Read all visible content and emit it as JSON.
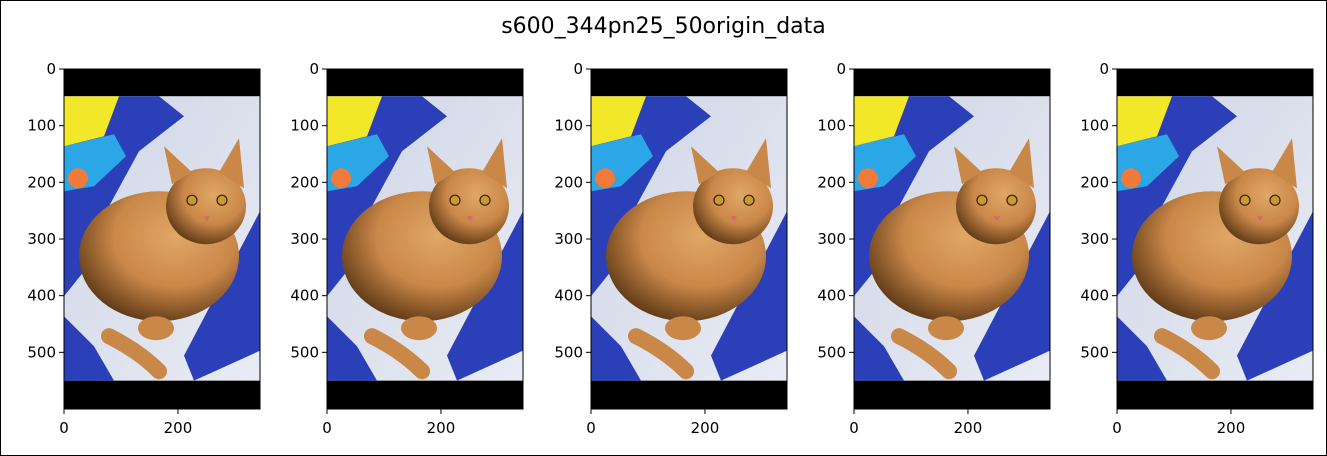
{
  "figure": {
    "title": "s600_344pn25_50origin_data"
  },
  "chart_data": [
    {
      "type": "image",
      "panel": 1,
      "image": "orange-cat-on-blue-bag-icon",
      "image_extent": {
        "width": 344,
        "height": 600
      },
      "x_ticks": [
        0,
        200
      ],
      "y_ticks": [
        0,
        100,
        200,
        300,
        400,
        500
      ]
    },
    {
      "type": "image",
      "panel": 2,
      "image": "orange-cat-on-blue-bag-icon",
      "image_extent": {
        "width": 344,
        "height": 600
      },
      "x_ticks": [
        0,
        200
      ],
      "y_ticks": [
        0,
        100,
        200,
        300,
        400,
        500
      ]
    },
    {
      "type": "image",
      "panel": 3,
      "image": "orange-cat-on-blue-bag-icon",
      "image_extent": {
        "width": 344,
        "height": 600
      },
      "x_ticks": [
        0,
        200
      ],
      "y_ticks": [
        0,
        100,
        200,
        300,
        400,
        500
      ]
    },
    {
      "type": "image",
      "panel": 4,
      "image": "orange-cat-on-blue-bag-icon",
      "image_extent": {
        "width": 344,
        "height": 600
      },
      "x_ticks": [
        0,
        200
      ],
      "y_ticks": [
        0,
        100,
        200,
        300,
        400,
        500
      ]
    },
    {
      "type": "image",
      "panel": 5,
      "image": "orange-cat-on-blue-bag-icon",
      "image_extent": {
        "width": 344,
        "height": 600
      },
      "x_ticks": [
        0,
        200
      ],
      "y_ticks": [
        0,
        100,
        200,
        300,
        400,
        500
      ]
    }
  ],
  "colors": {
    "letterbox": "#000000",
    "bag_blue": "#2a3fb8",
    "bag_yellow": "#f3e72a",
    "bag_cyan": "#2ba6e6",
    "sheet": "#e9ecf4",
    "cat_orange": "#c98748",
    "cat_dark": "#5a3614"
  }
}
